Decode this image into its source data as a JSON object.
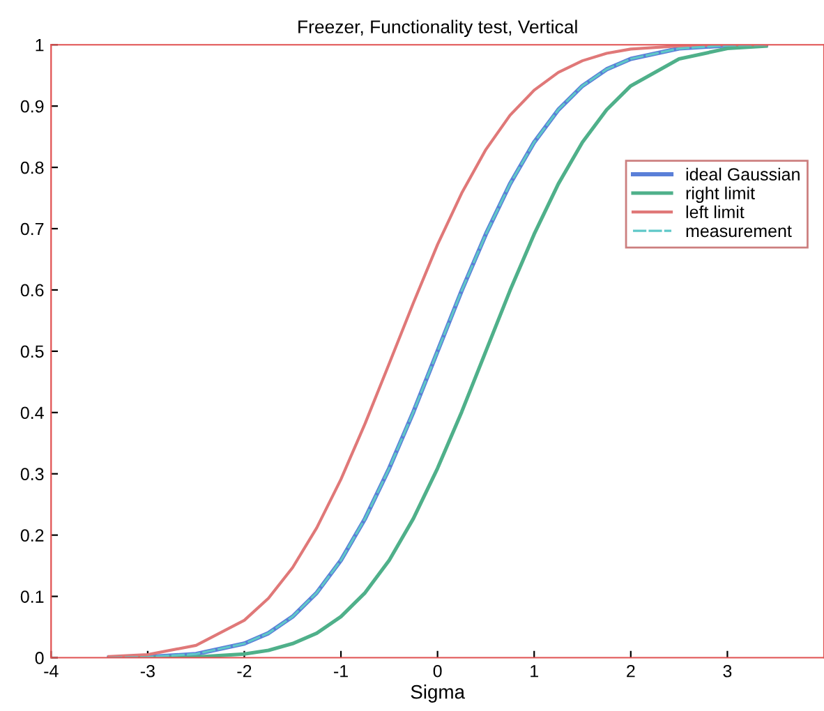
{
  "chart_data": {
    "type": "line",
    "title": "Freezer, Functionality test, Vertical",
    "xlabel": "Sigma",
    "x": [
      -3.4,
      -3,
      -2.5,
      -2,
      -1.75,
      -1.5,
      -1.25,
      -1,
      -0.75,
      -0.5,
      -0.25,
      0,
      0.25,
      0.5,
      0.75,
      1,
      1.25,
      1.5,
      1.75,
      2,
      2.5,
      3,
      3.4
    ],
    "series": [
      {
        "name": "ideal Gaussian",
        "color": "#5a7fd8",
        "values": [
          0.0,
          0.001,
          0.006,
          0.023,
          0.04,
          0.067,
          0.106,
          0.159,
          0.227,
          0.309,
          0.401,
          0.5,
          0.599,
          0.691,
          0.773,
          0.841,
          0.894,
          0.933,
          0.96,
          0.977,
          0.994,
          0.999,
          1.0
        ]
      },
      {
        "name": "right limit",
        "color": "#4fb08a",
        "values": [
          0.0,
          0.0,
          0.001,
          0.006,
          0.012,
          0.023,
          0.04,
          0.067,
          0.106,
          0.159,
          0.227,
          0.309,
          0.401,
          0.5,
          0.599,
          0.691,
          0.773,
          0.841,
          0.894,
          0.933,
          0.977,
          0.994,
          0.998
        ]
      },
      {
        "name": "left limit",
        "color": "#e07878",
        "values": [
          0.002,
          0.005,
          0.02,
          0.061,
          0.097,
          0.147,
          0.212,
          0.291,
          0.382,
          0.48,
          0.579,
          0.674,
          0.758,
          0.829,
          0.885,
          0.926,
          0.955,
          0.974,
          0.986,
          0.993,
          0.998,
          1.0,
          1.0
        ]
      },
      {
        "name": "measurement",
        "color": "#5fc8c8",
        "line_style": "dashed",
        "values": [
          0.0,
          0.001,
          0.006,
          0.023,
          0.04,
          0.067,
          0.106,
          0.159,
          0.227,
          0.309,
          0.401,
          0.5,
          0.599,
          0.691,
          0.773,
          0.841,
          0.894,
          0.933,
          0.96,
          0.977,
          0.994,
          0.999,
          1.0
        ]
      }
    ],
    "xlim": [
      -4,
      4
    ],
    "ylim": [
      0,
      1
    ],
    "xticks": [
      -4,
      -3,
      -2,
      -1,
      0,
      1,
      2,
      3
    ],
    "yticks": [
      0,
      0.1,
      0.2,
      0.3,
      0.4,
      0.5,
      0.6,
      0.7,
      0.8,
      0.9,
      1
    ],
    "legend": "right",
    "grid": false,
    "marker": "none"
  }
}
